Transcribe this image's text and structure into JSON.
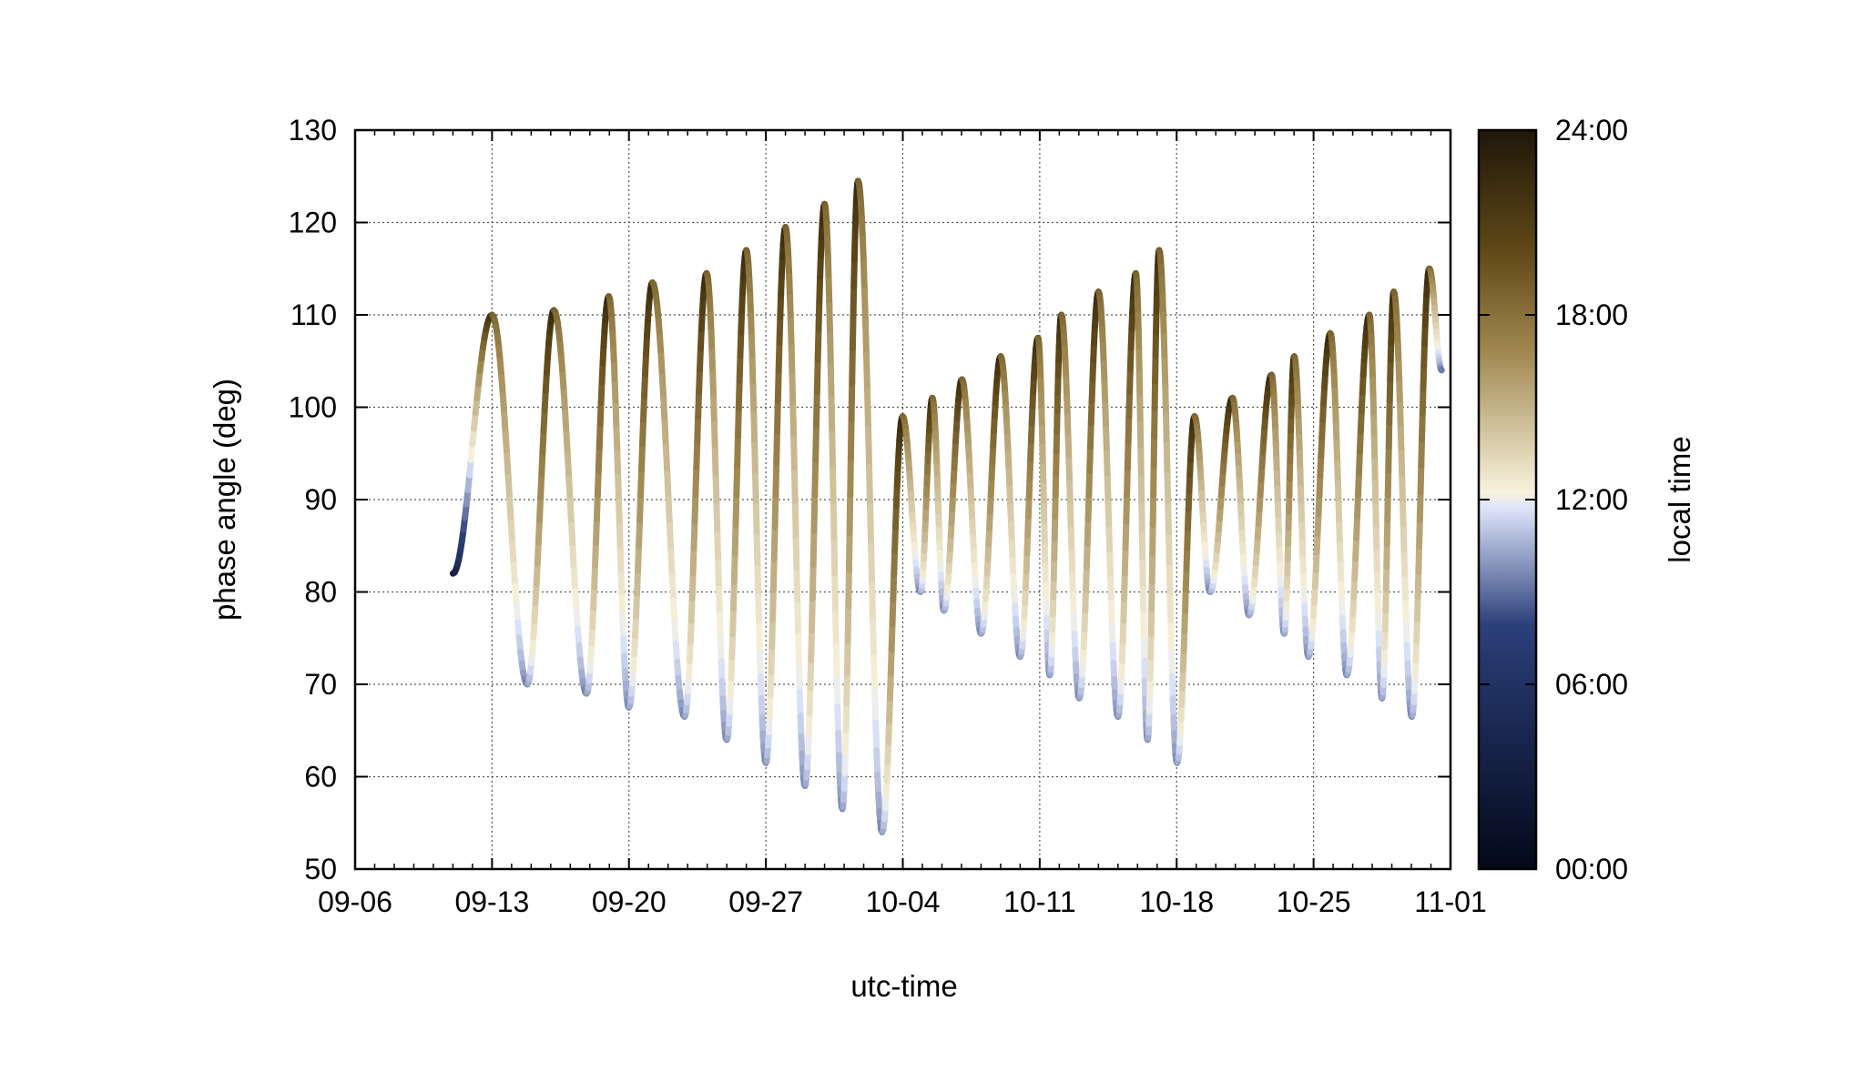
{
  "chart_data": {
    "type": "line",
    "xlabel": "utc-time",
    "ylabel": "phase angle (deg)",
    "xlim": [
      "09-06",
      "11-01"
    ],
    "ylim": [
      50,
      130
    ],
    "x_ticks": [
      "09-06",
      "09-13",
      "09-20",
      "09-27",
      "10-04",
      "10-11",
      "10-18",
      "10-25",
      "11-01"
    ],
    "y_ticks": [
      50,
      60,
      70,
      80,
      90,
      100,
      110,
      120,
      130
    ],
    "grid": true,
    "colorbar": {
      "label": "local time",
      "ticks": [
        "00:00",
        "06:00",
        "12:00",
        "18:00",
        "24:00"
      ],
      "colors": [
        "#030819",
        "#2b3f7a",
        "#dfe6fb",
        "#f8f2dc",
        "#a08850",
        "#5e4716",
        "#1f170a"
      ]
    },
    "start_point": {
      "x": "09-11",
      "y": 82
    },
    "peaks": [
      {
        "x": "09-13",
        "y": 110
      },
      {
        "x": "09-16",
        "y": 110.5
      },
      {
        "x": "09-19",
        "y": 112
      },
      {
        "x": "09-21",
        "y": 113.5
      },
      {
        "x": "09-24",
        "y": 114.5
      },
      {
        "x": "09-26",
        "y": 117
      },
      {
        "x": "09-28",
        "y": 119.5
      },
      {
        "x": "09-30",
        "y": 122
      },
      {
        "x": "10-01",
        "y": 124.5
      },
      {
        "x": "10-04",
        "y": 99
      },
      {
        "x": "10-05",
        "y": 101
      },
      {
        "x": "10-07",
        "y": 103
      },
      {
        "x": "10-09",
        "y": 105.5
      },
      {
        "x": "10-11",
        "y": 107.5
      },
      {
        "x": "10-12",
        "y": 110
      },
      {
        "x": "10-14",
        "y": 112.5
      },
      {
        "x": "10-16",
        "y": 114.5
      },
      {
        "x": "10-17",
        "y": 117
      },
      {
        "x": "10-19",
        "y": 99
      },
      {
        "x": "10-21",
        "y": 101
      },
      {
        "x": "10-23",
        "y": 103.5
      },
      {
        "x": "10-24",
        "y": 105.5
      },
      {
        "x": "10-26",
        "y": 108
      },
      {
        "x": "10-28",
        "y": 110
      },
      {
        "x": "10-29",
        "y": 112.5
      },
      {
        "x": "10-31",
        "y": 115
      }
    ],
    "troughs": [
      {
        "x": "09-15",
        "y": 70
      },
      {
        "x": "09-18",
        "y": 69
      },
      {
        "x": "09-20",
        "y": 67.5
      },
      {
        "x": "09-23",
        "y": 66.5
      },
      {
        "x": "09-25",
        "y": 64
      },
      {
        "x": "09-27",
        "y": 61.5
      },
      {
        "x": "09-29",
        "y": 59
      },
      {
        "x": "10-01",
        "y": 56.5
      },
      {
        "x": "10-03",
        "y": 54
      },
      {
        "x": "10-05",
        "y": 80
      },
      {
        "x": "10-06",
        "y": 78
      },
      {
        "x": "10-08",
        "y": 75.5
      },
      {
        "x": "10-10",
        "y": 73
      },
      {
        "x": "10-11",
        "y": 71
      },
      {
        "x": "10-13",
        "y": 68.5
      },
      {
        "x": "10-15",
        "y": 66.5
      },
      {
        "x": "10-16",
        "y": 64
      },
      {
        "x": "10-18",
        "y": 61.5
      },
      {
        "x": "10-19",
        "y": 80
      },
      {
        "x": "10-21",
        "y": 77.5
      },
      {
        "x": "10-23",
        "y": 75.5
      },
      {
        "x": "10-24",
        "y": 73
      },
      {
        "x": "10-26",
        "y": 71
      },
      {
        "x": "10-28",
        "y": 68.5
      },
      {
        "x": "10-30",
        "y": 66.5
      }
    ],
    "end_point": {
      "x": "10-31",
      "y": 104
    }
  }
}
